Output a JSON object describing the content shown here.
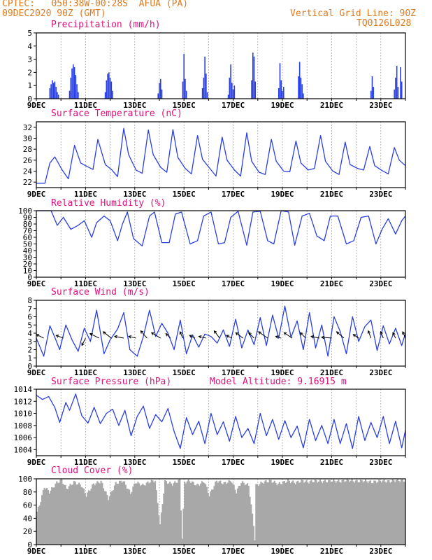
{
  "header": {
    "line1": "CPTEC:   050:38W-00:28S  AFUA (PA)",
    "line2": "09DEC2020 90Z (GMT)",
    "right1": "Vertical Grid Line: 90Z",
    "right2": "TQ0126L028"
  },
  "colors": {
    "header": "#e07a1f",
    "title": "#e0107a",
    "series": "#2a3fe0",
    "cloud": "#a8a8a8",
    "grid": "#666666"
  },
  "x_labels": [
    "9DEC",
    "11DEC",
    "13DEC",
    "15DEC",
    "17DEC",
    "19DEC",
    "21DEC",
    "23DEC"
  ],
  "x_label_offset_days": [
    0,
    2,
    4,
    6,
    8,
    10,
    12,
    14
  ],
  "days_span": 15,
  "chart_data": [
    {
      "id": "precipitation",
      "type": "bar",
      "title": "Precipitation (mm/h)",
      "ylim": [
        0,
        5
      ],
      "yticks": [
        0,
        1,
        2,
        3,
        4,
        5
      ],
      "bars": [
        {
          "day": 0.55,
          "value": 0.8
        },
        {
          "day": 0.6,
          "value": 1.1
        },
        {
          "day": 0.65,
          "value": 1.4
        },
        {
          "day": 0.7,
          "value": 1.2
        },
        {
          "day": 0.75,
          "value": 1.3
        },
        {
          "day": 0.8,
          "value": 0.9
        },
        {
          "day": 0.85,
          "value": 0.5
        },
        {
          "day": 0.9,
          "value": 0.3
        },
        {
          "day": 1.35,
          "value": 0.6
        },
        {
          "day": 1.4,
          "value": 1.6
        },
        {
          "day": 1.45,
          "value": 2.3
        },
        {
          "day": 1.5,
          "value": 2.6
        },
        {
          "day": 1.55,
          "value": 2.4
        },
        {
          "day": 1.6,
          "value": 1.8
        },
        {
          "day": 1.65,
          "value": 1.1
        },
        {
          "day": 1.7,
          "value": 0.5
        },
        {
          "day": 2.8,
          "value": 0.5
        },
        {
          "day": 2.85,
          "value": 1.4
        },
        {
          "day": 2.9,
          "value": 1.9
        },
        {
          "day": 2.95,
          "value": 2.0
        },
        {
          "day": 3.0,
          "value": 1.6
        },
        {
          "day": 3.05,
          "value": 1.3
        },
        {
          "day": 3.1,
          "value": 0.6
        },
        {
          "day": 4.95,
          "value": 0.4
        },
        {
          "day": 5.0,
          "value": 1.2
        },
        {
          "day": 5.05,
          "value": 1.5
        },
        {
          "day": 5.1,
          "value": 0.7
        },
        {
          "day": 5.95,
          "value": 1.3
        },
        {
          "day": 6.0,
          "value": 3.4
        },
        {
          "day": 6.05,
          "value": 1.5
        },
        {
          "day": 6.1,
          "value": 0.6
        },
        {
          "day": 6.75,
          "value": 0.8
        },
        {
          "day": 6.8,
          "value": 1.6
        },
        {
          "day": 6.85,
          "value": 3.2
        },
        {
          "day": 6.9,
          "value": 1.9
        },
        {
          "day": 6.95,
          "value": 0.5
        },
        {
          "day": 7.8,
          "value": 0.3
        },
        {
          "day": 7.85,
          "value": 1.6
        },
        {
          "day": 7.9,
          "value": 2.6
        },
        {
          "day": 7.95,
          "value": 1.2
        },
        {
          "day": 8.0,
          "value": 0.7
        },
        {
          "day": 8.05,
          "value": 1.0
        },
        {
          "day": 8.75,
          "value": 1.4
        },
        {
          "day": 8.8,
          "value": 3.5
        },
        {
          "day": 8.85,
          "value": 3.2
        },
        {
          "day": 8.9,
          "value": 1.3
        },
        {
          "day": 9.85,
          "value": 0.8
        },
        {
          "day": 9.9,
          "value": 2.7
        },
        {
          "day": 9.95,
          "value": 1.4
        },
        {
          "day": 10.0,
          "value": 0.6
        },
        {
          "day": 10.05,
          "value": 0.9
        },
        {
          "day": 10.65,
          "value": 1.7
        },
        {
          "day": 10.7,
          "value": 2.8
        },
        {
          "day": 10.75,
          "value": 1.6
        },
        {
          "day": 10.8,
          "value": 1.1
        },
        {
          "day": 10.85,
          "value": 0.4
        },
        {
          "day": 13.6,
          "value": 0.6
        },
        {
          "day": 13.65,
          "value": 1.7
        },
        {
          "day": 13.7,
          "value": 0.9
        },
        {
          "day": 14.55,
          "value": 0.7
        },
        {
          "day": 14.6,
          "value": 1.6
        },
        {
          "day": 14.65,
          "value": 2.5
        },
        {
          "day": 14.7,
          "value": 0.9
        },
        {
          "day": 14.8,
          "value": 2.4
        },
        {
          "day": 14.85,
          "value": 1.3
        }
      ]
    },
    {
      "id": "temperature",
      "type": "line",
      "title": "Surface Temperature (nC)",
      "ylim": [
        21,
        33
      ],
      "yticks": [
        22,
        24,
        26,
        28,
        30,
        32
      ],
      "x": [
        0,
        0.35,
        0.55,
        0.75,
        1.05,
        1.3,
        1.55,
        1.8,
        2.0,
        2.3,
        2.5,
        2.8,
        3.05,
        3.3,
        3.55,
        3.75,
        4.05,
        4.3,
        4.55,
        4.75,
        5.05,
        5.3,
        5.55,
        5.75,
        6.05,
        6.3,
        6.55,
        6.75,
        7.05,
        7.3,
        7.55,
        7.75,
        8.05,
        8.3,
        8.55,
        8.75,
        9.05,
        9.3,
        9.55,
        9.75,
        10.05,
        10.3,
        10.55,
        10.75,
        11.05,
        11.3,
        11.55,
        11.75,
        12.05,
        12.3,
        12.55,
        12.75,
        13.05,
        13.3,
        13.55,
        13.75,
        14.05,
        14.3,
        14.55,
        14.75,
        15.0
      ],
      "values": [
        21.8,
        21.8,
        25.5,
        26.6,
        24.2,
        22.6,
        28.7,
        25.5,
        25.0,
        24.3,
        29.8,
        25.2,
        24.3,
        23.0,
        31.8,
        27.0,
        24.2,
        23.6,
        31.5,
        27.0,
        24.7,
        23.8,
        31.6,
        26.5,
        24.5,
        23.5,
        30.5,
        26.2,
        24.5,
        23.1,
        30.2,
        26.0,
        24.2,
        23.1,
        31.0,
        25.8,
        23.8,
        23.4,
        29.8,
        25.8,
        24.0,
        23.9,
        29.5,
        25.5,
        24.2,
        24.5,
        30.5,
        25.8,
        24.0,
        23.4,
        29.3,
        25.2,
        24.5,
        24.2,
        28.5,
        25.0,
        24.1,
        23.5,
        28.3,
        26.0,
        25.0
      ]
    },
    {
      "id": "humidity",
      "type": "line",
      "title": "Relative Humidity (%)",
      "ylim": [
        0,
        100
      ],
      "yticks": [
        0,
        10,
        20,
        30,
        40,
        50,
        60,
        70,
        80,
        90,
        100
      ],
      "x": [
        0,
        0.4,
        0.6,
        0.85,
        1.1,
        1.4,
        1.7,
        1.95,
        2.25,
        2.45,
        2.75,
        3.0,
        3.3,
        3.5,
        3.7,
        3.95,
        4.3,
        4.6,
        4.8,
        5.1,
        5.4,
        5.65,
        5.9,
        6.25,
        6.55,
        6.8,
        7.1,
        7.4,
        7.65,
        7.9,
        8.2,
        8.55,
        8.8,
        9.1,
        9.4,
        9.65,
        9.95,
        10.25,
        10.5,
        10.8,
        11.1,
        11.4,
        11.7,
        11.95,
        12.25,
        12.6,
        12.9,
        13.2,
        13.5,
        13.8,
        14.05,
        14.3,
        14.6,
        14.85,
        15.0
      ],
      "values": [
        100,
        100,
        100,
        78,
        90,
        72,
        78,
        85,
        60,
        82,
        92,
        85,
        55,
        80,
        98,
        58,
        47,
        92,
        98,
        52,
        52,
        95,
        98,
        50,
        55,
        92,
        98,
        50,
        52,
        90,
        99,
        48,
        98,
        99,
        55,
        50,
        100,
        98,
        48,
        92,
        96,
        62,
        55,
        92,
        92,
        50,
        55,
        90,
        92,
        50,
        72,
        88,
        65,
        85,
        92
      ]
    },
    {
      "id": "wind",
      "type": "line",
      "title": "Surface Wind (m/s)",
      "ylim": [
        0,
        8
      ],
      "yticks": [
        0,
        1,
        2,
        3,
        4,
        5,
        6,
        7,
        8
      ],
      "x": [
        0,
        0.3,
        0.55,
        0.75,
        0.95,
        1.2,
        1.45,
        1.7,
        1.95,
        2.2,
        2.45,
        2.75,
        3.0,
        3.3,
        3.55,
        3.8,
        4.1,
        4.35,
        4.6,
        4.85,
        5.1,
        5.35,
        5.6,
        5.85,
        6.1,
        6.35,
        6.6,
        6.85,
        7.1,
        7.35,
        7.6,
        7.85,
        8.1,
        8.35,
        8.6,
        8.85,
        9.1,
        9.35,
        9.6,
        9.85,
        10.1,
        10.35,
        10.6,
        10.85,
        11.1,
        11.35,
        11.6,
        11.85,
        12.1,
        12.35,
        12.6,
        12.85,
        13.1,
        13.35,
        13.6,
        13.85,
        14.1,
        14.35,
        14.6,
        14.85,
        15.0
      ],
      "values": [
        3.4,
        1.2,
        4.9,
        3.5,
        2.0,
        5.0,
        3.2,
        1.8,
        4.6,
        3.0,
        6.8,
        1.5,
        3.2,
        4.5,
        6.5,
        2.0,
        1.2,
        3.6,
        6.8,
        3.6,
        5.2,
        4.0,
        2.0,
        5.6,
        1.5,
        3.8,
        2.3,
        3.9,
        3.6,
        2.8,
        4.4,
        2.4,
        5.7,
        2.2,
        4.4,
        2.6,
        5.9,
        2.5,
        6.2,
        3.4,
        7.3,
        3.5,
        5.5,
        2.0,
        6.5,
        2.2,
        5.0,
        1.2,
        6.0,
        4.2,
        1.5,
        6.0,
        3.0,
        4.8,
        5.6,
        1.9,
        4.9,
        2.7,
        4.6,
        2.5,
        4.0
      ],
      "arrows": [
        {
          "day": 0.3,
          "u": 0.8,
          "v": 0.4
        },
        {
          "day": 1.1,
          "u": 0.8,
          "v": 0.3
        },
        {
          "day": 2.0,
          "u": 0.4,
          "v": -0.8
        },
        {
          "day": 2.55,
          "u": 1.0,
          "v": 0.5
        },
        {
          "day": 3.05,
          "u": 0.9,
          "v": 0.7
        },
        {
          "day": 3.55,
          "u": 1.0,
          "v": 0.2
        },
        {
          "day": 4.05,
          "u": 0.8,
          "v": 0.2
        },
        {
          "day": 4.5,
          "u": 0.7,
          "v": 0.8
        },
        {
          "day": 5.05,
          "u": 1.0,
          "v": 0.6
        },
        {
          "day": 5.45,
          "u": 0.5,
          "v": 0.5
        },
        {
          "day": 5.95,
          "u": 0.3,
          "v": 0.7
        },
        {
          "day": 6.45,
          "u": 0.6,
          "v": 0.3
        },
        {
          "day": 6.9,
          "u": 0.8,
          "v": 0.2
        },
        {
          "day": 7.45,
          "u": 0.6,
          "v": 0.8
        },
        {
          "day": 7.95,
          "u": 0.6,
          "v": 0.3
        },
        {
          "day": 8.4,
          "u": 0.8,
          "v": 0.6
        },
        {
          "day": 8.85,
          "u": 0.6,
          "v": 0.6
        },
        {
          "day": 9.4,
          "u": 1.0,
          "v": 0.7
        },
        {
          "day": 9.95,
          "u": 0.6,
          "v": 0.2
        },
        {
          "day": 10.4,
          "u": 0.9,
          "v": 0.6
        },
        {
          "day": 10.95,
          "u": 0.6,
          "v": 0.6
        },
        {
          "day": 11.5,
          "u": 0.9,
          "v": 0.2
        },
        {
          "day": 12.0,
          "u": 1.1,
          "v": 0.1
        },
        {
          "day": 12.5,
          "u": 0.8,
          "v": 0.7
        },
        {
          "day": 13.1,
          "u": 0.6,
          "v": 0.4
        },
        {
          "day": 13.6,
          "u": 0.3,
          "v": 0.8
        },
        {
          "day": 14.1,
          "u": 0.3,
          "v": 0.7
        },
        {
          "day": 14.6,
          "u": 0.3,
          "v": 0.6
        },
        {
          "day": 15.0,
          "u": 0.3,
          "v": 0.7
        }
      ]
    },
    {
      "id": "pressure",
      "type": "line",
      "title": "Surface Pressure (hPa)",
      "extra_label": "Model Altitude: 9.16915 m",
      "ylim": [
        1003,
        1014
      ],
      "yticks": [
        1004,
        1006,
        1008,
        1010,
        1012,
        1014
      ],
      "x": [
        0,
        0.25,
        0.5,
        0.75,
        0.95,
        1.2,
        1.35,
        1.6,
        1.85,
        2.1,
        2.35,
        2.6,
        2.85,
        3.1,
        3.35,
        3.6,
        3.85,
        4.1,
        4.35,
        4.6,
        4.85,
        5.1,
        5.35,
        5.6,
        5.85,
        6.1,
        6.35,
        6.6,
        6.85,
        7.1,
        7.35,
        7.6,
        7.85,
        8.1,
        8.35,
        8.6,
        8.85,
        9.1,
        9.35,
        9.6,
        9.85,
        10.1,
        10.35,
        10.6,
        10.85,
        11.1,
        11.35,
        11.6,
        11.85,
        12.1,
        12.35,
        12.6,
        12.85,
        13.1,
        13.35,
        13.6,
        13.85,
        14.1,
        14.35,
        14.6,
        14.85,
        15.0
      ],
      "values": [
        1013.0,
        1012.3,
        1012.8,
        1011.0,
        1008.5,
        1011.8,
        1010.5,
        1013.2,
        1009.6,
        1008.4,
        1011.0,
        1008.3,
        1010.0,
        1010.7,
        1008.0,
        1010.5,
        1006.3,
        1009.5,
        1011.2,
        1007.5,
        1009.8,
        1008.6,
        1010.8,
        1007.0,
        1004.2,
        1009.3,
        1006.5,
        1008.7,
        1005.0,
        1010.0,
        1006.5,
        1008.6,
        1005.4,
        1009.5,
        1006.0,
        1007.5,
        1005.0,
        1010.0,
        1006.3,
        1009.0,
        1005.7,
        1008.8,
        1006.0,
        1007.9,
        1004.3,
        1009.0,
        1005.5,
        1008.0,
        1005.0,
        1009.0,
        1005.0,
        1008.3,
        1004.2,
        1009.5,
        1005.5,
        1008.5,
        1006.0,
        1009.5,
        1005.0,
        1008.7,
        1004.3,
        1007.2
      ]
    },
    {
      "id": "cloud",
      "type": "area",
      "title": "Cloud Cover (%)",
      "ylim": [
        0,
        100
      ],
      "yticks": [
        0,
        20,
        40,
        60,
        80,
        100
      ],
      "x": [
        0,
        0.1,
        0.3,
        0.5,
        0.8,
        1.0,
        1.2,
        1.5,
        1.8,
        2.0,
        2.3,
        2.6,
        2.9,
        3.2,
        3.5,
        3.8,
        4.0,
        4.3,
        4.6,
        4.8,
        5.0,
        5.2,
        5.5,
        5.8,
        5.9,
        6.0,
        6.2,
        6.5,
        6.8,
        7.0,
        7.3,
        7.6,
        7.9,
        8.1,
        8.3,
        8.6,
        8.8,
        8.85,
        8.9,
        9.2,
        9.5,
        9.8,
        10.2,
        10.5,
        10.8,
        11.0,
        11.3,
        11.6,
        12.0,
        12.3,
        12.6,
        13.0,
        13.3,
        13.6,
        14.0,
        14.3,
        14.6,
        15.0
      ],
      "values": [
        50,
        60,
        88,
        80,
        94,
        98,
        85,
        95,
        90,
        75,
        92,
        96,
        70,
        93,
        97,
        78,
        95,
        90,
        96,
        97,
        30,
        96,
        92,
        98,
        10,
        95,
        97,
        90,
        96,
        75,
        97,
        93,
        97,
        80,
        95,
        90,
        30,
        8,
        90,
        95,
        97,
        92,
        97,
        94,
        97,
        95,
        97,
        96,
        97,
        96,
        98,
        96,
        97,
        95,
        97,
        96,
        98,
        97
      ]
    }
  ]
}
